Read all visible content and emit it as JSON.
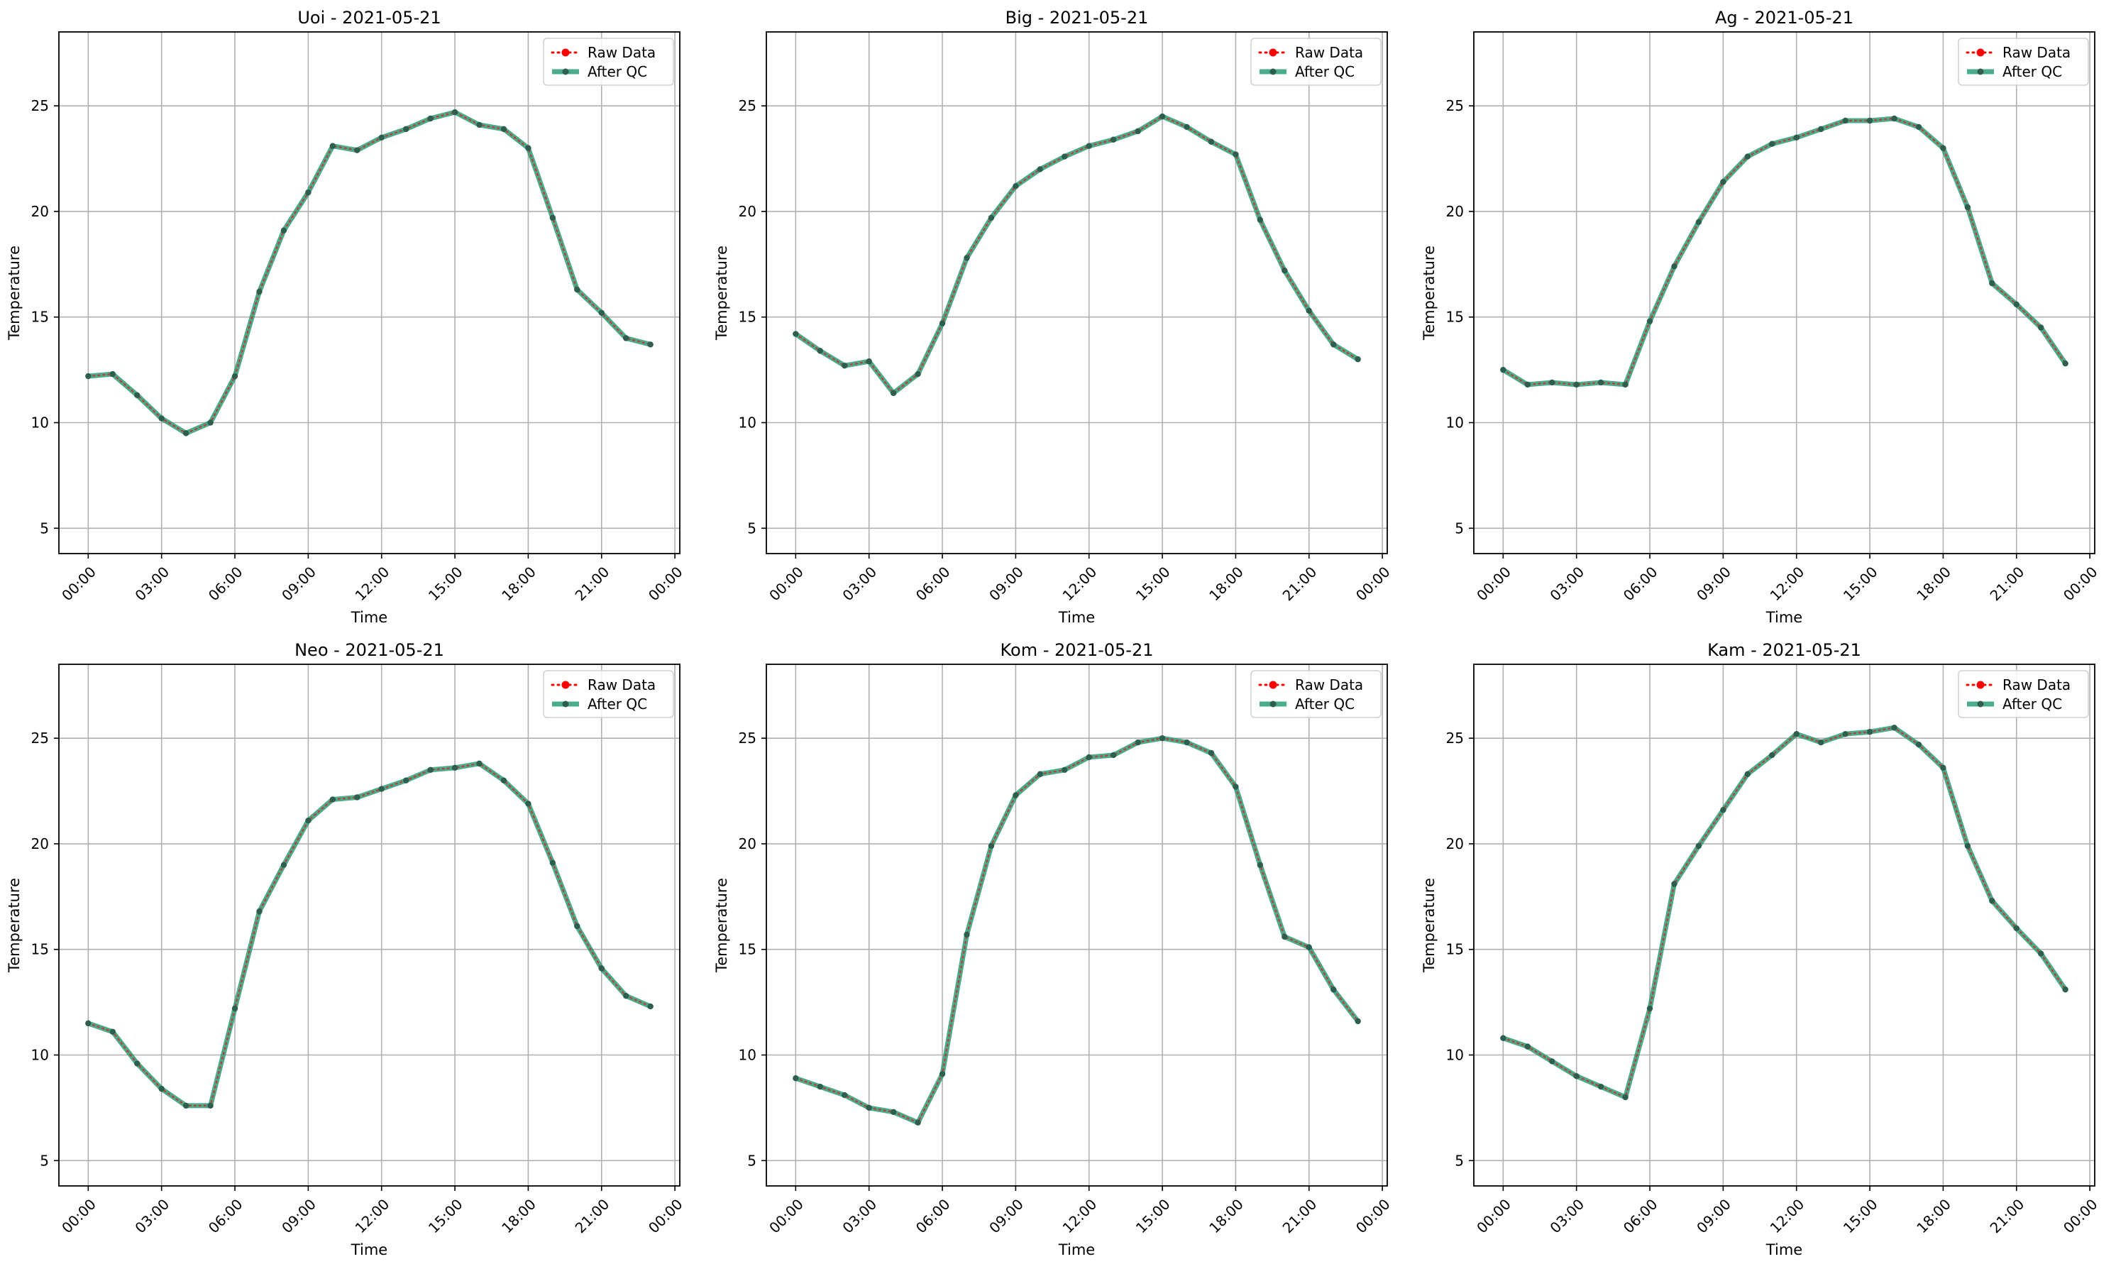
{
  "chart_data": [
    {
      "type": "line",
      "title": "Uoi - 2021-05-21",
      "xlabel": "Time",
      "ylabel": "Temperature",
      "x": [
        "00:00",
        "01:00",
        "02:00",
        "03:00",
        "04:00",
        "05:00",
        "06:00",
        "07:00",
        "08:00",
        "09:00",
        "10:00",
        "11:00",
        "12:00",
        "13:00",
        "14:00",
        "15:00",
        "16:00",
        "17:00",
        "18:00",
        "19:00",
        "20:00",
        "21:00",
        "22:00",
        "23:00"
      ],
      "xticks": [
        "00:00",
        "03:00",
        "06:00",
        "09:00",
        "12:00",
        "15:00",
        "18:00",
        "21:00",
        "00:00"
      ],
      "xlim": [
        -1.2,
        24.2
      ],
      "yticks": [
        5,
        10,
        15,
        20,
        25
      ],
      "ylim": [
        3.8,
        28.5
      ],
      "grid": true,
      "legend_position": "upper right",
      "series": [
        {
          "name": "Raw Data",
          "style": "dotted",
          "marker": "circle",
          "color": "#ff0000",
          "values": [
            12.2,
            12.3,
            11.3,
            10.2,
            9.5,
            10.0,
            12.2,
            16.2,
            19.1,
            20.9,
            23.1,
            22.9,
            23.5,
            23.9,
            24.4,
            24.7,
            24.1,
            23.9,
            23.0,
            19.7,
            16.3,
            15.2,
            14.0,
            13.7
          ]
        },
        {
          "name": "After QC",
          "style": "solid",
          "marker": "circle",
          "color": "#2a9d78",
          "values": [
            12.2,
            12.3,
            11.3,
            10.2,
            9.5,
            10.0,
            12.2,
            16.2,
            19.1,
            20.9,
            23.1,
            22.9,
            23.5,
            23.9,
            24.4,
            24.7,
            24.1,
            23.9,
            23.0,
            19.7,
            16.3,
            15.2,
            14.0,
            13.7
          ]
        }
      ]
    },
    {
      "type": "line",
      "title": "Big - 2021-05-21",
      "xlabel": "Time",
      "ylabel": "Temperature",
      "x": [
        "00:00",
        "01:00",
        "02:00",
        "03:00",
        "04:00",
        "05:00",
        "06:00",
        "07:00",
        "08:00",
        "09:00",
        "10:00",
        "11:00",
        "12:00",
        "13:00",
        "14:00",
        "15:00",
        "16:00",
        "17:00",
        "18:00",
        "19:00",
        "20:00",
        "21:00",
        "22:00",
        "23:00"
      ],
      "xticks": [
        "00:00",
        "03:00",
        "06:00",
        "09:00",
        "12:00",
        "15:00",
        "18:00",
        "21:00",
        "00:00"
      ],
      "xlim": [
        -1.2,
        24.2
      ],
      "yticks": [
        5,
        10,
        15,
        20,
        25
      ],
      "ylim": [
        3.8,
        28.5
      ],
      "grid": true,
      "legend_position": "upper right",
      "series": [
        {
          "name": "Raw Data",
          "style": "dotted",
          "marker": "circle",
          "color": "#ff0000",
          "values": [
            14.2,
            13.4,
            12.7,
            12.9,
            11.4,
            12.3,
            14.7,
            17.8,
            19.7,
            21.2,
            22.0,
            22.6,
            23.1,
            23.4,
            23.8,
            24.5,
            24.0,
            23.3,
            22.7,
            19.6,
            17.2,
            15.3,
            13.7,
            13.0
          ]
        },
        {
          "name": "After QC",
          "style": "solid",
          "marker": "circle",
          "color": "#2a9d78",
          "values": [
            14.2,
            13.4,
            12.7,
            12.9,
            11.4,
            12.3,
            14.7,
            17.8,
            19.7,
            21.2,
            22.0,
            22.6,
            23.1,
            23.4,
            23.8,
            24.5,
            24.0,
            23.3,
            22.7,
            19.6,
            17.2,
            15.3,
            13.7,
            13.0
          ]
        }
      ]
    },
    {
      "type": "line",
      "title": "Ag - 2021-05-21",
      "xlabel": "Time",
      "ylabel": "Temperature",
      "x": [
        "00:00",
        "01:00",
        "02:00",
        "03:00",
        "04:00",
        "05:00",
        "06:00",
        "07:00",
        "08:00",
        "09:00",
        "10:00",
        "11:00",
        "12:00",
        "13:00",
        "14:00",
        "15:00",
        "16:00",
        "17:00",
        "18:00",
        "19:00",
        "20:00",
        "21:00",
        "22:00",
        "23:00"
      ],
      "xticks": [
        "00:00",
        "03:00",
        "06:00",
        "09:00",
        "12:00",
        "15:00",
        "18:00",
        "21:00",
        "00:00"
      ],
      "xlim": [
        -1.2,
        24.2
      ],
      "yticks": [
        5,
        10,
        15,
        20,
        25
      ],
      "ylim": [
        3.8,
        28.5
      ],
      "grid": true,
      "legend_position": "upper right",
      "series": [
        {
          "name": "Raw Data",
          "style": "dotted",
          "marker": "circle",
          "color": "#ff0000",
          "values": [
            12.5,
            11.8,
            11.9,
            11.8,
            11.9,
            11.8,
            14.8,
            17.4,
            19.5,
            21.4,
            22.6,
            23.2,
            23.5,
            23.9,
            24.3,
            24.3,
            24.4,
            24.0,
            23.0,
            20.2,
            16.6,
            15.6,
            14.5,
            12.8
          ]
        },
        {
          "name": "After QC",
          "style": "solid",
          "marker": "circle",
          "color": "#2a9d78",
          "values": [
            12.5,
            11.8,
            11.9,
            11.8,
            11.9,
            11.8,
            14.8,
            17.4,
            19.5,
            21.4,
            22.6,
            23.2,
            23.5,
            23.9,
            24.3,
            24.3,
            24.4,
            24.0,
            23.0,
            20.2,
            16.6,
            15.6,
            14.5,
            12.8
          ]
        }
      ]
    },
    {
      "type": "line",
      "title": "Neo - 2021-05-21",
      "xlabel": "Time",
      "ylabel": "Temperature",
      "x": [
        "00:00",
        "01:00",
        "02:00",
        "03:00",
        "04:00",
        "05:00",
        "06:00",
        "07:00",
        "08:00",
        "09:00",
        "10:00",
        "11:00",
        "12:00",
        "13:00",
        "14:00",
        "15:00",
        "16:00",
        "17:00",
        "18:00",
        "19:00",
        "20:00",
        "21:00",
        "22:00",
        "23:00"
      ],
      "xticks": [
        "00:00",
        "03:00",
        "06:00",
        "09:00",
        "12:00",
        "15:00",
        "18:00",
        "21:00",
        "00:00"
      ],
      "xlim": [
        -1.2,
        24.2
      ],
      "yticks": [
        5,
        10,
        15,
        20,
        25
      ],
      "ylim": [
        3.8,
        28.5
      ],
      "grid": true,
      "legend_position": "upper right",
      "series": [
        {
          "name": "Raw Data",
          "style": "dotted",
          "marker": "circle",
          "color": "#ff0000",
          "values": [
            11.5,
            11.1,
            9.6,
            8.4,
            7.6,
            7.6,
            12.2,
            16.8,
            19.0,
            21.1,
            22.1,
            22.2,
            22.6,
            23.0,
            23.5,
            23.6,
            23.8,
            23.0,
            21.9,
            19.1,
            16.1,
            14.1,
            12.8,
            12.3
          ]
        },
        {
          "name": "After QC",
          "style": "solid",
          "marker": "circle",
          "color": "#2a9d78",
          "values": [
            11.5,
            11.1,
            9.6,
            8.4,
            7.6,
            7.6,
            12.2,
            16.8,
            19.0,
            21.1,
            22.1,
            22.2,
            22.6,
            23.0,
            23.5,
            23.6,
            23.8,
            23.0,
            21.9,
            19.1,
            16.1,
            14.1,
            12.8,
            12.3
          ]
        }
      ]
    },
    {
      "type": "line",
      "title": "Kom - 2021-05-21",
      "xlabel": "Time",
      "ylabel": "Temperature",
      "x": [
        "00:00",
        "01:00",
        "02:00",
        "03:00",
        "04:00",
        "05:00",
        "06:00",
        "07:00",
        "08:00",
        "09:00",
        "10:00",
        "11:00",
        "12:00",
        "13:00",
        "14:00",
        "15:00",
        "16:00",
        "17:00",
        "18:00",
        "19:00",
        "20:00",
        "21:00",
        "22:00",
        "23:00"
      ],
      "xticks": [
        "00:00",
        "03:00",
        "06:00",
        "09:00",
        "12:00",
        "15:00",
        "18:00",
        "21:00",
        "00:00"
      ],
      "xlim": [
        -1.2,
        24.2
      ],
      "yticks": [
        5,
        10,
        15,
        20,
        25
      ],
      "ylim": [
        3.8,
        28.5
      ],
      "grid": true,
      "legend_position": "upper right",
      "series": [
        {
          "name": "Raw Data",
          "style": "dotted",
          "marker": "circle",
          "color": "#ff0000",
          "values": [
            8.9,
            8.5,
            8.1,
            7.5,
            7.3,
            6.8,
            9.1,
            15.7,
            19.9,
            22.3,
            23.3,
            23.5,
            24.1,
            24.2,
            24.8,
            25.0,
            24.8,
            24.3,
            22.7,
            19.0,
            15.6,
            15.1,
            13.1,
            11.6
          ]
        },
        {
          "name": "After QC",
          "style": "solid",
          "marker": "circle",
          "color": "#2a9d78",
          "values": [
            8.9,
            8.5,
            8.1,
            7.5,
            7.3,
            6.8,
            9.1,
            15.7,
            19.9,
            22.3,
            23.3,
            23.5,
            24.1,
            24.2,
            24.8,
            25.0,
            24.8,
            24.3,
            22.7,
            19.0,
            15.6,
            15.1,
            13.1,
            11.6
          ]
        }
      ]
    },
    {
      "type": "line",
      "title": "Kam - 2021-05-21",
      "xlabel": "Time",
      "ylabel": "Temperature",
      "x": [
        "00:00",
        "01:00",
        "02:00",
        "03:00",
        "04:00",
        "05:00",
        "06:00",
        "07:00",
        "08:00",
        "09:00",
        "10:00",
        "11:00",
        "12:00",
        "13:00",
        "14:00",
        "15:00",
        "16:00",
        "17:00",
        "18:00",
        "19:00",
        "20:00",
        "21:00",
        "22:00",
        "23:00"
      ],
      "xticks": [
        "00:00",
        "03:00",
        "06:00",
        "09:00",
        "12:00",
        "15:00",
        "18:00",
        "21:00",
        "00:00"
      ],
      "xlim": [
        -1.2,
        24.2
      ],
      "yticks": [
        5,
        10,
        15,
        20,
        25
      ],
      "ylim": [
        3.8,
        28.5
      ],
      "grid": true,
      "legend_position": "upper right",
      "series": [
        {
          "name": "Raw Data",
          "style": "dotted",
          "marker": "circle",
          "color": "#ff0000",
          "values": [
            10.8,
            10.4,
            9.7,
            9.0,
            8.5,
            8.0,
            12.2,
            18.1,
            19.9,
            21.6,
            23.3,
            24.2,
            25.2,
            24.8,
            25.2,
            25.3,
            25.5,
            24.7,
            23.6,
            19.9,
            17.3,
            16.0,
            14.8,
            13.1
          ]
        },
        {
          "name": "After QC",
          "style": "solid",
          "marker": "circle",
          "color": "#2a9d78",
          "values": [
            10.8,
            10.4,
            9.7,
            9.0,
            8.5,
            8.0,
            12.2,
            18.1,
            19.9,
            21.6,
            23.3,
            24.2,
            25.2,
            24.8,
            25.2,
            25.3,
            25.5,
            24.7,
            23.6,
            19.9,
            17.3,
            16.0,
            14.8,
            13.1
          ]
        }
      ]
    }
  ]
}
